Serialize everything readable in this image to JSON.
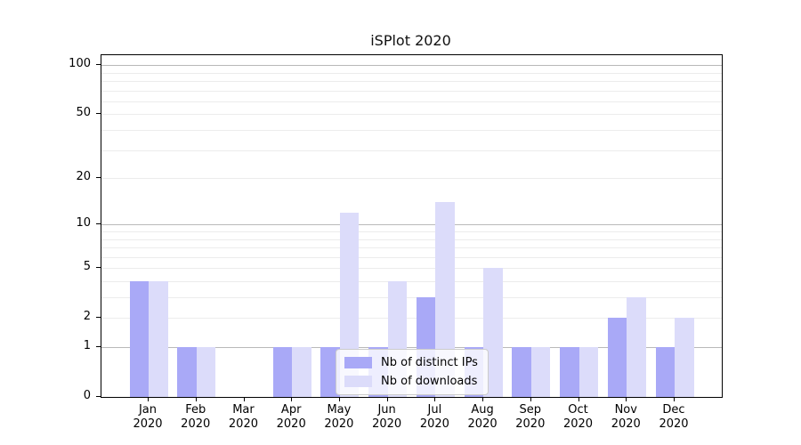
{
  "chart_data": {
    "type": "bar",
    "title": "iSPlot 2020",
    "scale": "log1p",
    "grid": true,
    "categories": [
      "Jan 2020",
      "Feb 2020",
      "Mar 2020",
      "Apr 2020",
      "May 2020",
      "Jun 2020",
      "Jul 2020",
      "Aug 2020",
      "Sep 2020",
      "Oct 2020",
      "Nov 2020",
      "Dec 2020"
    ],
    "x_axis": {
      "months": [
        "Jan",
        "Feb",
        "Mar",
        "Apr",
        "May",
        "Jun",
        "Jul",
        "Aug",
        "Sep",
        "Oct",
        "Nov",
        "Dec"
      ],
      "year": "2020"
    },
    "y_axis": {
      "tick_labels": [
        100,
        50,
        20,
        10,
        5,
        2,
        1,
        0
      ],
      "major_gridlines": [
        1,
        10,
        100
      ],
      "minor_gridlines": [
        2,
        3,
        4,
        5,
        6,
        7,
        8,
        9,
        20,
        30,
        40,
        50,
        60,
        70,
        80,
        90
      ],
      "ylim": [
        0,
        115
      ]
    },
    "series": [
      {
        "name": "Nb of distinct IPs",
        "color": "#a9a9f7",
        "values": [
          4,
          1,
          0,
          1,
          1,
          1,
          3,
          1,
          1,
          1,
          2,
          1
        ]
      },
      {
        "name": "Nb of downloads",
        "color": "#dcdcfa",
        "values": [
          4,
          1,
          0,
          1,
          12,
          4,
          14,
          5,
          1,
          1,
          3,
          2
        ]
      }
    ],
    "legend": {
      "position": "lower center"
    },
    "colors": {
      "bar_distinct_ips": "#a9a9f7",
      "bar_downloads": "#dcdcfa",
      "major_grid": "#b9b9b9",
      "minor_grid": "#ececec",
      "axis": "#000000"
    }
  }
}
